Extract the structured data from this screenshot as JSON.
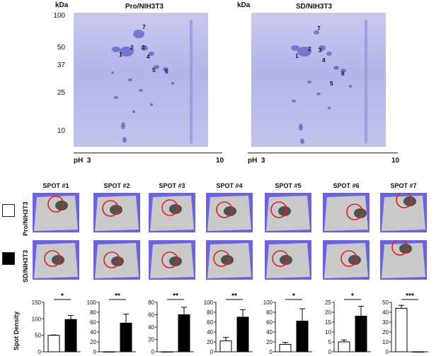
{
  "gels": [
    {
      "title": "Pro/NIH3T3",
      "kda_label": "kDa",
      "ph_label": "pH",
      "ph_start": "3",
      "ph_end": "10"
    },
    {
      "title": "SD/NIH3T3",
      "kda_label": "kDa",
      "ph_label": "pH",
      "ph_start": "3",
      "ph_end": "10"
    }
  ],
  "mw_markers": [
    "100",
    "50",
    "37",
    "25",
    "10"
  ],
  "spot_labels": [
    "1",
    "2",
    "3",
    "4",
    "5",
    "6",
    "7"
  ],
  "spots": [
    {
      "title": "SPOT #1"
    },
    {
      "title": "SPOT #2"
    },
    {
      "title": "SPOT #3"
    },
    {
      "title": "SPOT #4"
    },
    {
      "title": "SPOT #5"
    },
    {
      "title": "SPOT #6"
    },
    {
      "title": "SPOT #7"
    }
  ],
  "rows": [
    {
      "label": "Pro/NIH3T3"
    },
    {
      "label": "SD/NIH3T3"
    }
  ],
  "bar_ylabel": "Spot Density",
  "colors": {
    "thumb_bg": "#6a63e6",
    "circle": "#e0201c",
    "gel": "#b9bbec"
  },
  "chart_data": [
    {
      "type": "bar",
      "categories": [
        "Pro/NIH3T3",
        "SD/NIH3T3"
      ],
      "values": [
        50,
        98
      ],
      "errors": [
        1,
        12
      ],
      "ylim": [
        0,
        150
      ],
      "yticks": [
        "0",
        "50",
        "100",
        "150"
      ],
      "sig": "*"
    },
    {
      "type": "bar",
      "categories": [
        "Pro/NIH3T3",
        "SD/NIH3T3"
      ],
      "values": [
        0,
        58
      ],
      "errors": [
        0,
        18
      ],
      "ylim": [
        0,
        100
      ],
      "yticks": [
        "0",
        "20",
        "40",
        "60",
        "80",
        "100"
      ],
      "sig": "**"
    },
    {
      "type": "bar",
      "categories": [
        "Pro/NIH3T3",
        "SD/NIH3T3"
      ],
      "values": [
        0,
        60
      ],
      "errors": [
        0,
        12
      ],
      "ylim": [
        0,
        80
      ],
      "yticks": [
        "0",
        "20",
        "40",
        "60",
        "80"
      ],
      "sig": "**"
    },
    {
      "type": "bar",
      "categories": [
        "Pro/NIH3T3",
        "SD/NIH3T3"
      ],
      "values": [
        22,
        70
      ],
      "errors": [
        7,
        15
      ],
      "ylim": [
        0,
        100
      ],
      "yticks": [
        "0",
        "20",
        "40",
        "60",
        "80",
        "100"
      ],
      "sig": "**"
    },
    {
      "type": "bar",
      "categories": [
        "Pro/NIH3T3",
        "SD/NIH3T3"
      ],
      "values": [
        15,
        62
      ],
      "errors": [
        4,
        25
      ],
      "ylim": [
        0,
        100
      ],
      "yticks": [
        "0",
        "20",
        "40",
        "60",
        "80",
        "100"
      ],
      "sig": "*"
    },
    {
      "type": "bar",
      "categories": [
        "Pro/NIH3T3",
        "SD/NIH3T3"
      ],
      "values": [
        5,
        18
      ],
      "errors": [
        1,
        5
      ],
      "ylim": [
        0,
        25
      ],
      "yticks": [
        "0",
        "5",
        "10",
        "15",
        "20",
        "25"
      ],
      "sig": "*"
    },
    {
      "type": "bar",
      "categories": [
        "Pro/NIH3T3",
        "SD/NIH3T3"
      ],
      "values": [
        44,
        0
      ],
      "errors": [
        3,
        0
      ],
      "ylim": [
        0,
        50
      ],
      "yticks": [
        "0",
        "10",
        "20",
        "30",
        "40",
        "50"
      ],
      "sig": "***"
    }
  ]
}
